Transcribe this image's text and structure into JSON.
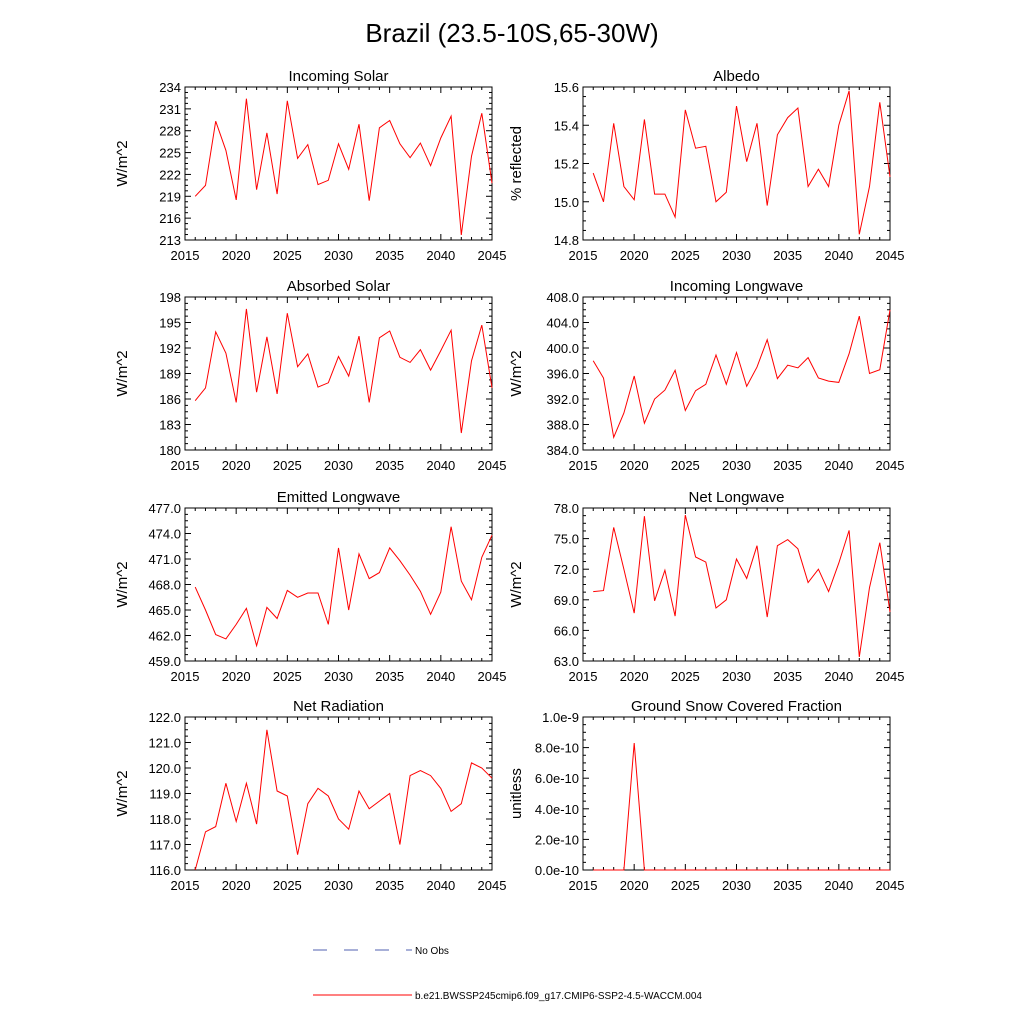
{
  "title": "Brazil (23.5-10S,65-30W)",
  "legend": {
    "obs_label": "No Obs",
    "model_label": "b.e21.BWSSP245cmip6.f09_g17.CMIP6-SSP2-4.5-WACCM.004",
    "obs_color": "#5060b0",
    "model_color": "#ff0000"
  },
  "chart_data": [
    {
      "type": "line",
      "title": "Incoming Solar",
      "ylabel": "W/m^2",
      "xlim": [
        2015,
        2045
      ],
      "ylim": [
        213,
        234
      ],
      "x_ticks": [
        2015,
        2020,
        2025,
        2030,
        2035,
        2040,
        2045
      ],
      "y_ticks": [
        "213",
        "216",
        "219",
        "222",
        "225",
        "228",
        "231",
        "234"
      ],
      "series": [
        {
          "color": "#ff0000",
          "x": [
            2016,
            2017,
            2018,
            2019,
            2020,
            2021,
            2022,
            2023,
            2024,
            2025,
            2026,
            2027,
            2028,
            2029,
            2030,
            2031,
            2032,
            2033,
            2034,
            2035,
            2036,
            2037,
            2038,
            2039,
            2040,
            2041,
            2042,
            2043,
            2044,
            2045
          ],
          "values": [
            219.0,
            220.5,
            229.3,
            225.3,
            218.5,
            232.4,
            219.9,
            227.7,
            219.3,
            232.1,
            224.2,
            226.1,
            220.6,
            221.2,
            226.2,
            222.7,
            228.9,
            218.4,
            228.4,
            229.4,
            226.2,
            224.3,
            226.3,
            223.2,
            227.0,
            230.0,
            213.7,
            224.5,
            230.4,
            220.8
          ]
        }
      ]
    },
    {
      "type": "line",
      "title": "Albedo",
      "ylabel": "% reflected",
      "xlim": [
        2015,
        2045
      ],
      "ylim": [
        14.8,
        15.6
      ],
      "x_ticks": [
        2015,
        2020,
        2025,
        2030,
        2035,
        2040,
        2045
      ],
      "y_ticks": [
        "14.8",
        "15.0",
        "15.2",
        "15.4",
        "15.6"
      ],
      "series": [
        {
          "color": "#ff0000",
          "x": [
            2016,
            2017,
            2018,
            2019,
            2020,
            2021,
            2022,
            2023,
            2024,
            2025,
            2026,
            2027,
            2028,
            2029,
            2030,
            2031,
            2032,
            2033,
            2034,
            2035,
            2036,
            2037,
            2038,
            2039,
            2040,
            2041,
            2042,
            2043,
            2044,
            2045
          ],
          "values": [
            15.15,
            15.0,
            15.41,
            15.08,
            15.01,
            15.43,
            15.04,
            15.04,
            14.92,
            15.48,
            15.28,
            15.29,
            15.0,
            15.05,
            15.5,
            15.21,
            15.41,
            14.98,
            15.35,
            15.44,
            15.49,
            15.08,
            15.17,
            15.08,
            15.4,
            15.58,
            14.83,
            15.08,
            15.52,
            15.13
          ]
        }
      ]
    },
    {
      "type": "line",
      "title": "Absorbed Solar",
      "ylabel": "W/m^2",
      "xlim": [
        2015,
        2045
      ],
      "ylim": [
        180,
        198
      ],
      "x_ticks": [
        2015,
        2020,
        2025,
        2030,
        2035,
        2040,
        2045
      ],
      "y_ticks": [
        "180",
        "183",
        "186",
        "189",
        "192",
        "195",
        "198"
      ],
      "series": [
        {
          "color": "#ff0000",
          "x": [
            2016,
            2017,
            2018,
            2019,
            2020,
            2021,
            2022,
            2023,
            2024,
            2025,
            2026,
            2027,
            2028,
            2029,
            2030,
            2031,
            2032,
            2033,
            2034,
            2035,
            2036,
            2037,
            2038,
            2039,
            2040,
            2041,
            2042,
            2043,
            2044,
            2045
          ],
          "values": [
            185.8,
            187.3,
            193.9,
            191.4,
            185.6,
            196.6,
            186.8,
            193.3,
            186.6,
            196.1,
            189.8,
            191.3,
            187.4,
            187.9,
            191.0,
            188.7,
            193.4,
            185.6,
            193.2,
            194.0,
            190.9,
            190.3,
            191.8,
            189.4,
            191.7,
            194.1,
            182.0,
            190.5,
            194.7,
            187.3
          ]
        }
      ]
    },
    {
      "type": "line",
      "title": "Incoming Longwave",
      "ylabel": "W/m^2",
      "xlim": [
        2015,
        2045
      ],
      "ylim": [
        384,
        408
      ],
      "x_ticks": [
        2015,
        2020,
        2025,
        2030,
        2035,
        2040,
        2045
      ],
      "y_ticks": [
        "384.0",
        "388.0",
        "392.0",
        "396.0",
        "400.0",
        "404.0",
        "408.0"
      ],
      "series": [
        {
          "color": "#ff0000",
          "x": [
            2016,
            2017,
            2018,
            2019,
            2020,
            2021,
            2022,
            2023,
            2024,
            2025,
            2026,
            2027,
            2028,
            2029,
            2030,
            2031,
            2032,
            2033,
            2034,
            2035,
            2036,
            2037,
            2038,
            2039,
            2040,
            2041,
            2042,
            2043,
            2044,
            2045
          ],
          "values": [
            398.0,
            395.3,
            386.0,
            389.8,
            395.6,
            388.2,
            392.0,
            393.4,
            396.5,
            390.2,
            393.3,
            394.3,
            398.9,
            394.3,
            399.3,
            394.0,
            397.0,
            401.3,
            395.2,
            397.3,
            396.9,
            398.5,
            395.3,
            394.8,
            394.6,
            399.1,
            405.0,
            396.0,
            396.6,
            406.0
          ]
        }
      ]
    },
    {
      "type": "line",
      "title": "Emitted Longwave",
      "ylabel": "W/m^2",
      "xlim": [
        2015,
        2045
      ],
      "ylim": [
        459,
        477
      ],
      "x_ticks": [
        2015,
        2020,
        2025,
        2030,
        2035,
        2040,
        2045
      ],
      "y_ticks": [
        "459.0",
        "462.0",
        "465.0",
        "468.0",
        "471.0",
        "474.0",
        "477.0"
      ],
      "series": [
        {
          "color": "#ff0000",
          "x": [
            2016,
            2017,
            2018,
            2019,
            2020,
            2021,
            2022,
            2023,
            2024,
            2025,
            2026,
            2027,
            2028,
            2029,
            2030,
            2031,
            2032,
            2033,
            2034,
            2035,
            2036,
            2037,
            2038,
            2039,
            2040,
            2041,
            2042,
            2043,
            2044,
            2045
          ],
          "values": [
            467.7,
            465.0,
            462.1,
            461.6,
            463.3,
            465.2,
            460.8,
            465.3,
            464.0,
            467.3,
            466.5,
            467.0,
            467.0,
            463.3,
            472.3,
            465.0,
            471.6,
            468.7,
            469.4,
            472.3,
            470.8,
            469.1,
            467.2,
            464.5,
            467.1,
            474.8,
            468.4,
            466.2,
            471.2,
            473.8
          ]
        }
      ]
    },
    {
      "type": "line",
      "title": "Net Longwave",
      "ylabel": "W/m^2",
      "xlim": [
        2015,
        2045
      ],
      "ylim": [
        63,
        78
      ],
      "x_ticks": [
        2015,
        2020,
        2025,
        2030,
        2035,
        2040,
        2045
      ],
      "y_ticks": [
        "63.0",
        "66.0",
        "69.0",
        "72.0",
        "75.0",
        "78.0"
      ],
      "series": [
        {
          "color": "#ff0000",
          "x": [
            2016,
            2017,
            2018,
            2019,
            2020,
            2021,
            2022,
            2023,
            2024,
            2025,
            2026,
            2027,
            2028,
            2029,
            2030,
            2031,
            2032,
            2033,
            2034,
            2035,
            2036,
            2037,
            2038,
            2039,
            2040,
            2041,
            2042,
            2043,
            2044,
            2045
          ],
          "values": [
            69.8,
            69.9,
            76.1,
            72.0,
            67.7,
            77.2,
            68.9,
            71.9,
            67.4,
            77.3,
            73.2,
            72.7,
            68.2,
            69.0,
            73.0,
            71.1,
            74.3,
            67.3,
            74.3,
            74.9,
            74.0,
            70.7,
            72.0,
            69.8,
            72.6,
            75.8,
            63.4,
            70.2,
            74.6,
            67.8
          ]
        }
      ]
    },
    {
      "type": "line",
      "title": "Net Radiation",
      "ylabel": "W/m^2",
      "xlim": [
        2015,
        2045
      ],
      "ylim": [
        116,
        122
      ],
      "x_ticks": [
        2015,
        2020,
        2025,
        2030,
        2035,
        2040,
        2045
      ],
      "y_ticks": [
        "116.0",
        "117.0",
        "118.0",
        "119.0",
        "120.0",
        "121.0",
        "122.0"
      ],
      "series": [
        {
          "color": "#ff0000",
          "x": [
            2016,
            2017,
            2018,
            2019,
            2020,
            2021,
            2022,
            2023,
            2024,
            2025,
            2026,
            2027,
            2028,
            2029,
            2030,
            2031,
            2032,
            2033,
            2034,
            2035,
            2036,
            2037,
            2038,
            2039,
            2040,
            2041,
            2042,
            2043,
            2044,
            2045
          ],
          "values": [
            116.0,
            117.5,
            117.7,
            119.4,
            117.9,
            119.4,
            117.8,
            121.5,
            119.1,
            118.9,
            116.6,
            118.6,
            119.2,
            118.9,
            118.0,
            117.6,
            119.1,
            118.4,
            118.7,
            119.0,
            117.0,
            119.7,
            119.9,
            119.7,
            119.2,
            118.3,
            118.6,
            120.2,
            120.0,
            119.6
          ]
        }
      ]
    },
    {
      "type": "line",
      "title": "Ground Snow Covered Fraction",
      "ylabel": "unitless",
      "xlim": [
        2015,
        2045
      ],
      "ylim": [
        0,
        1e-09
      ],
      "x_ticks": [
        2015,
        2020,
        2025,
        2030,
        2035,
        2040,
        2045
      ],
      "y_ticks": [
        "0.0e-10",
        "2.0e-10",
        "4.0e-10",
        "6.0e-10",
        "8.0e-10",
        "1.0e-9"
      ],
      "series": [
        {
          "color": "#ff0000",
          "x": [
            2016,
            2017,
            2018,
            2019,
            2020,
            2021,
            2022,
            2023,
            2024,
            2025,
            2026,
            2027,
            2028,
            2029,
            2030,
            2031,
            2032,
            2033,
            2034,
            2035,
            2036,
            2037,
            2038,
            2039,
            2040,
            2041,
            2042,
            2043,
            2044,
            2045
          ],
          "values": [
            0,
            0,
            0,
            0,
            8.3e-10,
            0,
            0,
            0,
            0,
            0,
            0,
            0,
            0,
            0,
            0,
            0,
            0,
            0,
            0,
            0,
            0,
            0,
            0,
            0,
            0,
            0,
            0,
            0,
            0,
            0
          ]
        }
      ]
    }
  ]
}
